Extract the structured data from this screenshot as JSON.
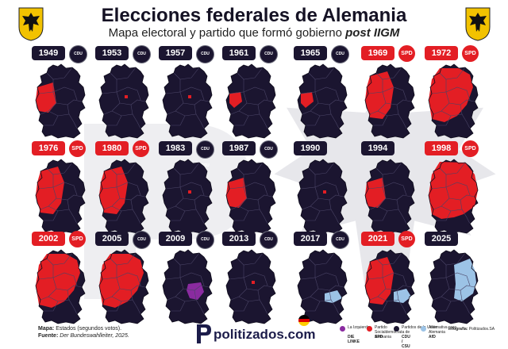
{
  "header": {
    "title": "Elecciones federales de Alemania",
    "subtitle_plain": "Mapa electoral y partido que formó gobierno ",
    "subtitle_bold": "post IIGM"
  },
  "elections": [
    {
      "year": "1949",
      "party": "cdu",
      "badge": "CDU CSU",
      "red_share": 0.4,
      "purple": false,
      "blue": false
    },
    {
      "year": "1953",
      "party": "cdu",
      "badge": "CDU CSU",
      "red_share": 0.05,
      "purple": false,
      "blue": false
    },
    {
      "year": "1957",
      "party": "cdu",
      "badge": "CDU CSU",
      "red_share": 0.03,
      "purple": false,
      "blue": false
    },
    {
      "year": "1961",
      "party": "cdu",
      "badge": "CDU CSU",
      "red_share": 0.15,
      "purple": false,
      "blue": false
    },
    {
      "year": "1965",
      "party": "cdu",
      "badge": "CDU CSU",
      "red_share": 0.12,
      "purple": false,
      "blue": false
    },
    {
      "year": "1969",
      "party": "spd",
      "badge": "SPD",
      "red_share": 0.45,
      "purple": false,
      "blue": false
    },
    {
      "year": "1972",
      "party": "spd",
      "badge": "SPD",
      "red_share": 0.65,
      "purple": false,
      "blue": false
    },
    {
      "year": "1976",
      "party": "spd",
      "badge": "SPD",
      "red_share": 0.55,
      "purple": false,
      "blue": false
    },
    {
      "year": "1980",
      "party": "spd",
      "badge": "SPD",
      "red_share": 0.55,
      "purple": false,
      "blue": false
    },
    {
      "year": "1983",
      "party": "cdu",
      "badge": "CDU CSU",
      "red_share": 0.03,
      "purple": false,
      "blue": false
    },
    {
      "year": "1987",
      "party": "cdu",
      "badge": "CDU CSU",
      "red_share": 0.2,
      "purple": false,
      "blue": false
    },
    {
      "year": "1990",
      "party": "cdu",
      "badge": "",
      "red_share": 0.03,
      "purple": false,
      "blue": false
    },
    {
      "year": "1994",
      "party": "cdu",
      "badge": "",
      "red_share": 0.35,
      "purple": false,
      "blue": false
    },
    {
      "year": "1998",
      "party": "spd",
      "badge": "SPD",
      "red_share": 0.75,
      "purple": false,
      "blue": false
    },
    {
      "year": "2002",
      "party": "spd",
      "badge": "SPD",
      "red_share": 0.7,
      "purple": false,
      "blue": false
    },
    {
      "year": "2005",
      "party": "cdu",
      "badge": "CDU CSU",
      "red_share": 0.6,
      "purple": false,
      "blue": false
    },
    {
      "year": "2009",
      "party": "cdu",
      "badge": "CDU CSU",
      "red_share": 0.0,
      "purple": true,
      "blue": false
    },
    {
      "year": "2013",
      "party": "cdu",
      "badge": "CDU CSU",
      "red_share": 0.03,
      "purple": false,
      "blue": false
    },
    {
      "year": "2017",
      "party": "cdu",
      "badge": "CDU CSU",
      "red_share": 0.0,
      "purple": false,
      "blue": true
    },
    {
      "year": "2021",
      "party": "spd",
      "badge": "SPD",
      "red_share": 0.55,
      "purple": false,
      "blue": true
    },
    {
      "year": "2025",
      "party": "cdu",
      "badge": "",
      "red_share": 0.0,
      "purple": false,
      "blue": true
    }
  ],
  "colors": {
    "cdu": "#1b1530",
    "spd": "#e31e24",
    "linke": "#8a2ba0",
    "afd": "#9cc3e6",
    "border": "#4a4466"
  },
  "footer": {
    "map_label": "Mapa:",
    "map_text": "Estados (segundos votos).",
    "source_label": "Fuente:",
    "source_text": "Der Bundeswahlleiter, 2025.",
    "brand": "politizados.com"
  },
  "legend": [
    {
      "small": "La Izquierda",
      "label": "DIE LINKE",
      "color": "#8a2ba0"
    },
    {
      "small": "Partido Socialdemócrata de Alemania",
      "label": "SPD",
      "color": "#e31e24"
    },
    {
      "small": "Partidos de la Unión",
      "label": "CDU / CSU",
      "color": "#1b1530"
    },
    {
      "small": "Alternativa para Alemania",
      "label": "AfD",
      "color": "#9cc3e6"
    }
  ],
  "credit": {
    "label": "Infografía:",
    "text": "Politizados.SA"
  }
}
